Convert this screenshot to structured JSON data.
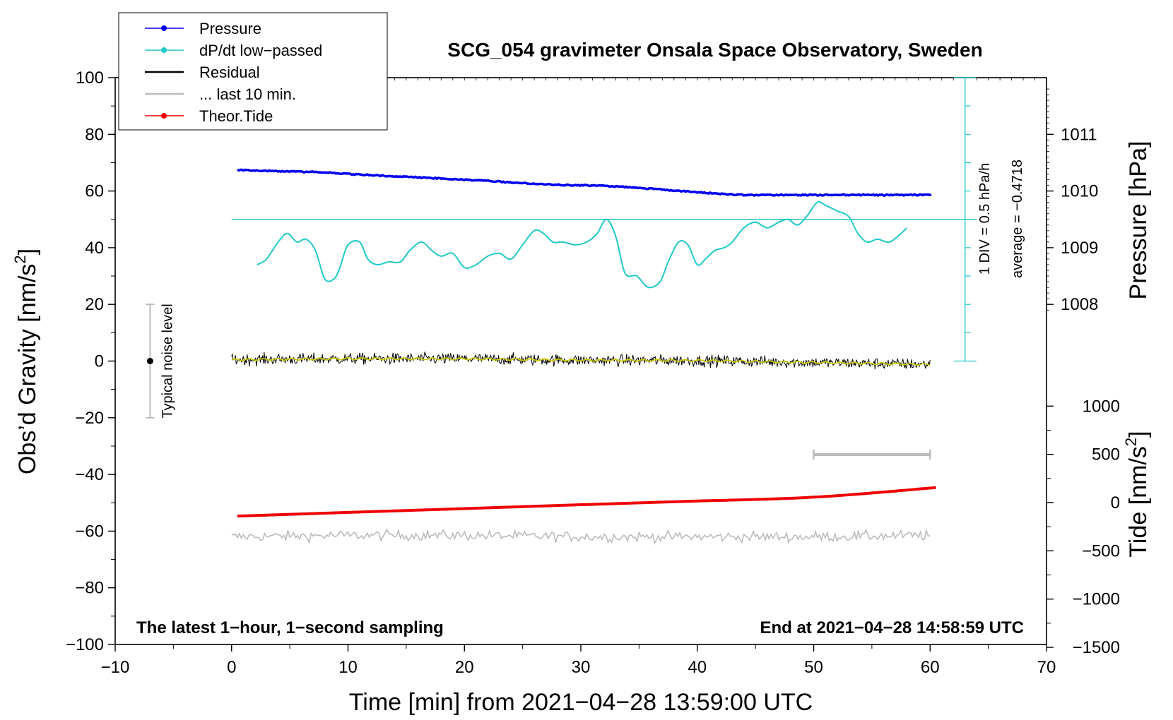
{
  "chart_data": {
    "type": "line",
    "title": "SCG_054 gravimeter Onsala Space Observatory, Sweden",
    "xlabel": "Time [min] from 2021−04−28 13:59:00 UTC",
    "ylabel_left": "Obs’d Gravity [nm/s",
    "ylabel_left_sup": "2",
    "ylabel_left_end": "]",
    "ylabel_pressure": "Pressure [hPa]",
    "ylabel_tide": "Tide [nm/s",
    "ylabel_tide_sup": "2",
    "ylabel_tide_end": "]",
    "xlim": [
      -10,
      70
    ],
    "ylim": [
      -100,
      100
    ],
    "x_ticks": [
      -10,
      0,
      10,
      20,
      30,
      40,
      50,
      60,
      70
    ],
    "y_ticks": [
      -100,
      -80,
      -60,
      -40,
      -20,
      0,
      20,
      40,
      60,
      80,
      100
    ],
    "pressure_ticks": [
      1008,
      1009,
      1010,
      1011
    ],
    "tide_ticks": [
      -1500,
      -1000,
      -500,
      0,
      500,
      1000
    ],
    "annotation_left": "The latest 1−hour, 1−second sampling",
    "annotation_right": "End at 2021−04−28 14:58:59 UTC",
    "noise_label": "Typical noise level",
    "div_label": "1 DIV = 0.5 hPa/h",
    "average_label": "average = −0.4718",
    "legend": [
      {
        "label": "Pressure",
        "color": "#0000ee",
        "marker": true
      },
      {
        "label": "dP/dt low−passed",
        "color": "#20c8c8",
        "marker": true
      },
      {
        "label": "Residual",
        "color": "#000000",
        "marker": false
      },
      {
        "label": "... last 10 min.",
        "color": "#bbbbbb",
        "marker": false
      },
      {
        "label": "Theor.Tide",
        "color": "#ee0000",
        "marker": true
      }
    ],
    "series": [
      {
        "name": "Pressure",
        "axis": "pressure_hPa",
        "color": "#0000ee",
        "x": [
          0.5,
          2,
          4,
          6,
          8,
          10,
          12,
          14,
          16,
          18,
          20,
          22,
          24,
          26,
          28,
          30,
          32,
          34,
          36,
          38,
          40,
          42,
          44,
          46,
          48,
          50,
          52,
          54,
          56,
          58,
          60
        ],
        "values": [
          1010.37,
          1010.36,
          1010.35,
          1010.34,
          1010.33,
          1010.3,
          1010.28,
          1010.26,
          1010.24,
          1010.22,
          1010.2,
          1010.18,
          1010.15,
          1010.13,
          1010.11,
          1010.1,
          1010.09,
          1010.07,
          1010.04,
          1010.01,
          1009.98,
          1009.95,
          1009.93,
          1009.93,
          1009.93,
          1009.93,
          1009.93,
          1009.93,
          1009.93,
          1009.93,
          1009.93
        ]
      },
      {
        "name": "dP/dt low-passed",
        "axis": "gravity_display",
        "color": "#20c8c8",
        "x": [
          2.2,
          3,
          4,
          4.8,
          5.6,
          6.4,
          7.2,
          8,
          8.8,
          9.3,
          10,
          11,
          11.7,
          12.5,
          13.5,
          14.5,
          15.3,
          16.3,
          17.2,
          18,
          19,
          20,
          21,
          22,
          23,
          24,
          25,
          26,
          26.8,
          27.6,
          28.5,
          29.5,
          30.5,
          31.4,
          32.2,
          33,
          33.8,
          34.8,
          35.8,
          36.8,
          37.5,
          38.4,
          39.2,
          40,
          40.7,
          41.5,
          42.3,
          43,
          44,
          45,
          46,
          47,
          47.8,
          48.6,
          49.4,
          50.3,
          51,
          52,
          53,
          53.8,
          54.6,
          55.5,
          56.5,
          57.5,
          58
        ],
        "values": [
          34,
          36,
          42,
          45,
          42,
          43,
          39,
          29,
          29,
          33,
          41,
          42,
          36,
          34,
          35,
          35,
          39,
          42,
          39,
          37,
          38,
          33,
          34,
          37,
          38,
          36,
          41,
          46,
          45,
          42,
          42,
          41,
          42,
          45,
          50,
          44,
          31,
          30,
          26,
          28,
          35,
          42,
          41,
          34,
          36,
          39,
          40,
          42,
          47,
          49,
          47,
          49,
          50,
          48,
          51,
          56,
          55,
          53,
          51,
          45,
          42,
          43,
          42,
          45,
          47
        ]
      },
      {
        "name": "Residual",
        "axis": "gravity",
        "color": "#000000",
        "x": [
          0,
          10,
          20,
          30,
          40,
          50,
          60
        ],
        "values": [
          0.5,
          0.8,
          0.8,
          0.3,
          0.2,
          -0.5,
          -1.2
        ]
      },
      {
        "name": "... last 10 min.",
        "axis": "gravity",
        "color": "#bbbbbb",
        "x": [
          0,
          10,
          20,
          30,
          40,
          50,
          60
        ],
        "values": [
          -62,
          -61.5,
          -61.5,
          -62,
          -62,
          -62,
          -61.5
        ]
      },
      {
        "name": "Theor.Tide",
        "axis": "tide_nm_s2",
        "color": "#ee0000",
        "x": [
          0.5,
          10,
          20,
          30,
          40,
          50,
          60.5
        ],
        "values": [
          -140,
          -102,
          -62,
          -22,
          16,
          56,
          155
        ]
      }
    ]
  }
}
